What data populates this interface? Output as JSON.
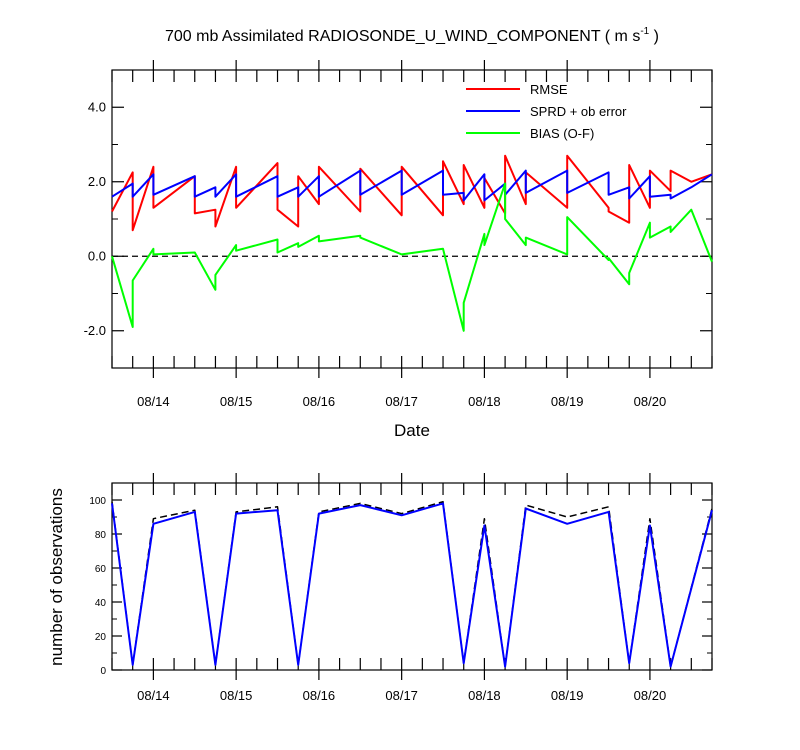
{
  "title_main": "700 mb Assimilated RADIOSONDE_U_WIND_COMPONENT ( m s",
  "title_sup": "-1",
  "title_end": " )",
  "chart_data": [
    {
      "type": "line",
      "xlabel": "Date",
      "ylabel": "",
      "ylim": [
        -3.0,
        5.0
      ],
      "xlim": [
        "08/13 12:00",
        "08/20 18:00"
      ],
      "yticks": [
        -2.0,
        0.0,
        2.0,
        4.0
      ],
      "ytick_labels": [
        "-2.0",
        "0.0",
        "2.0",
        "4.0"
      ],
      "xtick_labels": [
        "08/14",
        "08/15",
        "08/16",
        "08/17",
        "08/18",
        "08/19",
        "08/20"
      ],
      "reference_line": 0.0,
      "legend_position": "top-right",
      "series": [
        {
          "name": "RMSE",
          "color": "#ff0000",
          "x": [
            "08/13 12:00",
            "08/13 18:00",
            "08/13 18:00",
            "08/14 00:00",
            "08/14 00:00",
            "08/14 12:00",
            "08/14 12:00",
            "08/14 18:00",
            "08/14 18:00",
            "08/15 00:00",
            "08/15 00:00",
            "08/15 12:00",
            "08/15 12:00",
            "08/15 18:00",
            "08/15 18:00",
            "08/16 00:00",
            "08/16 00:00",
            "08/16 12:00",
            "08/16 12:00",
            "08/17 00:00",
            "08/17 00:00",
            "08/17 12:00",
            "08/17 12:00",
            "08/17 18:00",
            "08/17 18:00",
            "08/18 00:00",
            "08/18 00:00",
            "08/18 06:00",
            "08/18 06:00",
            "08/18 12:00",
            "08/18 12:00",
            "08/19 00:00",
            "08/19 00:00",
            "08/19 12:00",
            "08/19 12:00",
            "08/19 18:00",
            "08/19 18:00",
            "08/20 00:00",
            "08/20 00:00",
            "08/20 06:00",
            "08/20 06:00",
            "08/20 12:00",
            "08/20 18:00"
          ],
          "values": [
            1.2,
            2.25,
            0.7,
            2.4,
            1.3,
            2.15,
            1.15,
            1.25,
            0.8,
            2.4,
            1.3,
            2.5,
            1.25,
            0.8,
            2.15,
            1.4,
            2.4,
            1.2,
            2.35,
            1.1,
            2.4,
            1.1,
            2.55,
            1.4,
            2.45,
            1.3,
            2.1,
            1.15,
            2.7,
            1.4,
            2.25,
            1.3,
            2.7,
            1.3,
            1.2,
            0.9,
            2.45,
            1.3,
            2.3,
            1.75,
            2.3,
            2.0,
            2.2
          ]
        },
        {
          "name": "SPRD + ob error",
          "color": "#0000ff",
          "x": [
            "08/13 12:00",
            "08/13 18:00",
            "08/13 18:00",
            "08/14 00:00",
            "08/14 00:00",
            "08/14 12:00",
            "08/14 12:00",
            "08/14 18:00",
            "08/14 18:00",
            "08/15 00:00",
            "08/15 00:00",
            "08/15 12:00",
            "08/15 12:00",
            "08/15 18:00",
            "08/15 18:00",
            "08/16 00:00",
            "08/16 00:00",
            "08/16 12:00",
            "08/16 12:00",
            "08/17 00:00",
            "08/17 00:00",
            "08/17 12:00",
            "08/17 12:00",
            "08/17 18:00",
            "08/17 18:00",
            "08/18 00:00",
            "08/18 00:00",
            "08/18 06:00",
            "08/18 06:00",
            "08/18 12:00",
            "08/18 12:00",
            "08/19 00:00",
            "08/19 00:00",
            "08/19 12:00",
            "08/19 12:00",
            "08/19 18:00",
            "08/19 18:00",
            "08/20 00:00",
            "08/20 00:00",
            "08/20 06:00",
            "08/20 06:00",
            "08/20 12:00",
            "08/20 18:00"
          ],
          "values": [
            1.6,
            1.95,
            1.6,
            2.2,
            1.65,
            2.15,
            1.6,
            1.85,
            1.6,
            2.2,
            1.6,
            2.15,
            1.6,
            1.85,
            1.6,
            2.15,
            1.6,
            2.3,
            1.65,
            2.3,
            1.65,
            2.3,
            1.65,
            1.7,
            1.5,
            2.2,
            1.5,
            1.95,
            1.65,
            2.3,
            1.7,
            2.3,
            1.7,
            2.25,
            1.65,
            1.85,
            1.55,
            2.15,
            1.6,
            1.65,
            1.55,
            1.85,
            2.2
          ]
        },
        {
          "name": "BIAS (O-F)",
          "color": "#00ff00",
          "x": [
            "08/13 12:00",
            "08/13 18:00",
            "08/13 18:00",
            "08/14 00:00",
            "08/14 00:00",
            "08/14 12:00",
            "08/14 12:00",
            "08/14 18:00",
            "08/14 18:00",
            "08/15 00:00",
            "08/15 00:00",
            "08/15 12:00",
            "08/15 12:00",
            "08/15 18:00",
            "08/15 18:00",
            "08/16 00:00",
            "08/16 00:00",
            "08/16 12:00",
            "08/16 12:00",
            "08/17 00:00",
            "08/17 00:00",
            "08/17 12:00",
            "08/17 12:00",
            "08/17 18:00",
            "08/17 18:00",
            "08/18 00:00",
            "08/18 00:00",
            "08/18 06:00",
            "08/18 06:00",
            "08/18 12:00",
            "08/18 12:00",
            "08/19 00:00",
            "08/19 00:00",
            "08/19 12:00",
            "08/19 12:00",
            "08/19 18:00",
            "08/19 18:00",
            "08/20 00:00",
            "08/20 00:00",
            "08/20 06:00",
            "08/20 06:00",
            "08/20 12:00",
            "08/20 18:00"
          ],
          "values": [
            0.0,
            -1.9,
            -0.65,
            0.2,
            0.05,
            0.1,
            0.1,
            -0.9,
            -0.5,
            0.3,
            0.15,
            0.45,
            0.1,
            0.35,
            0.25,
            0.55,
            0.4,
            0.55,
            0.5,
            0.05,
            0.05,
            0.2,
            0.2,
            -2.0,
            -1.25,
            0.6,
            0.3,
            1.95,
            1.0,
            0.3,
            0.5,
            0.05,
            1.05,
            -0.1,
            -0.05,
            -0.75,
            -0.45,
            0.9,
            0.5,
            0.8,
            0.65,
            1.25,
            -0.15
          ]
        }
      ]
    },
    {
      "type": "line",
      "xlabel": "",
      "ylabel": "number of observations",
      "ylim": [
        0,
        110
      ],
      "yticks": [
        0,
        20,
        40,
        60,
        80,
        100
      ],
      "ytick_labels": [
        "0",
        "20",
        "40",
        "60",
        "80",
        "100"
      ],
      "xtick_labels": [
        "08/14",
        "08/15",
        "08/16",
        "08/17",
        "08/18",
        "08/19",
        "08/20"
      ],
      "series": [
        {
          "style": "dashed",
          "color": "#000000",
          "x": [
            "08/13 12:00",
            "08/13 18:00",
            "08/14 00:00",
            "08/14 12:00",
            "08/14 18:00",
            "08/15 00:00",
            "08/15 12:00",
            "08/15 18:00",
            "08/16 00:00",
            "08/16 12:00",
            "08/17 00:00",
            "08/17 12:00",
            "08/17 18:00",
            "08/18 00:00",
            "08/18 06:00",
            "08/18 12:00",
            "08/19 00:00",
            "08/19 12:00",
            "08/19 18:00",
            "08/20 00:00",
            "08/20 06:00",
            "08/20 18:00"
          ],
          "values": [
            99,
            3,
            89,
            94,
            3,
            93,
            96,
            3,
            93,
            98,
            92,
            99,
            4,
            89,
            2,
            97,
            90,
            96,
            4,
            89,
            2,
            95
          ]
        },
        {
          "style": "solid",
          "color": "#0000ff",
          "x": [
            "08/13 12:00",
            "08/13 18:00",
            "08/14 00:00",
            "08/14 12:00",
            "08/14 18:00",
            "08/15 00:00",
            "08/15 12:00",
            "08/15 18:00",
            "08/16 00:00",
            "08/16 12:00",
            "08/17 00:00",
            "08/17 12:00",
            "08/17 18:00",
            "08/18 00:00",
            "08/18 06:00",
            "08/18 12:00",
            "08/19 00:00",
            "08/19 12:00",
            "08/19 18:00",
            "08/20 00:00",
            "08/20 06:00",
            "08/20 18:00"
          ],
          "values": [
            98,
            3,
            86,
            93,
            3,
            92,
            94,
            3,
            92,
            97,
            91,
            98,
            4,
            85,
            2,
            95,
            86,
            93,
            4,
            85,
            2,
            94
          ]
        }
      ]
    }
  ]
}
